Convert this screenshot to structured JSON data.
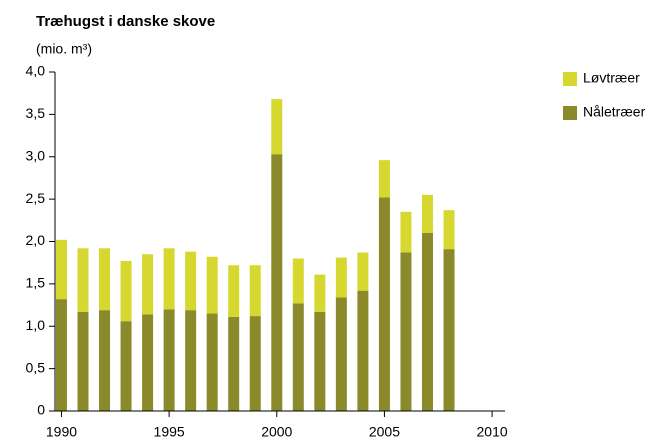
{
  "chart_data": {
    "type": "bar",
    "stacked": true,
    "title": "Træhugst i danske skove",
    "subtitle": "(mio. m³)",
    "x": [
      1990,
      1991,
      1992,
      1993,
      1994,
      1995,
      1996,
      1997,
      1998,
      1999,
      2000,
      2001,
      2002,
      2003,
      2004,
      2005,
      2006,
      2007,
      2008
    ],
    "series": [
      {
        "name": "Nåletræer",
        "color": "#8b8a2b",
        "values": [
          1.32,
          1.17,
          1.19,
          1.06,
          1.14,
          1.2,
          1.19,
          1.15,
          1.11,
          1.12,
          3.03,
          1.27,
          1.17,
          1.34,
          1.42,
          2.52,
          1.87,
          2.1,
          1.91
        ]
      },
      {
        "name": "Løvtræer",
        "color": "#d7d82f",
        "values": [
          0.7,
          0.75,
          0.73,
          0.71,
          0.71,
          0.72,
          0.69,
          0.67,
          0.61,
          0.6,
          0.65,
          0.53,
          0.44,
          0.47,
          0.45,
          0.44,
          0.48,
          0.45,
          0.46
        ]
      }
    ],
    "legend_order": [
      "Løvtræer",
      "Nåletræer"
    ],
    "xlim": [
      1989.7,
      2010.6
    ],
    "xticks": [
      1990,
      1995,
      2000,
      2005,
      2010
    ],
    "ylim": [
      0,
      4
    ],
    "yticks": [
      0,
      {
        "value": 0.5,
        "label": "0,5"
      },
      {
        "value": 1,
        "label": "1,0"
      },
      {
        "value": 1.5,
        "label": "1,5"
      },
      {
        "value": 2,
        "label": "2,0"
      },
      {
        "value": 2.5,
        "label": "2,5"
      },
      {
        "value": 3,
        "label": "3,0"
      },
      {
        "value": 3.5,
        "label": "3,5"
      },
      {
        "value": 4,
        "label": "4,0"
      }
    ],
    "grid": false,
    "legend": "right"
  }
}
